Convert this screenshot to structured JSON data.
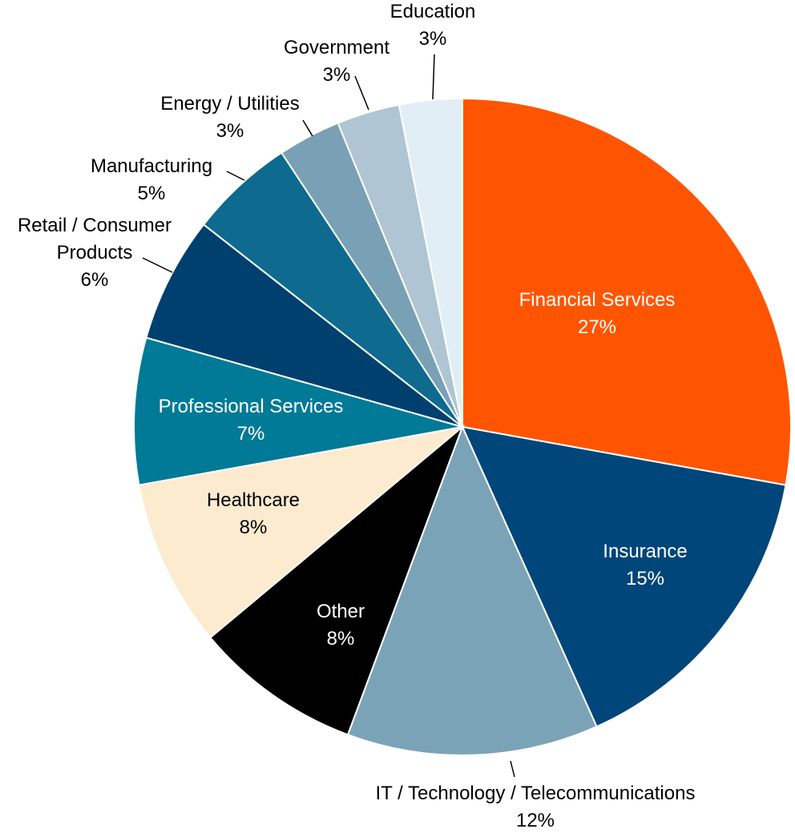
{
  "chart_data": {
    "type": "pie",
    "categories": [
      "Financial Services",
      "Insurance",
      "IT / Technology / Telecommunications",
      "Other",
      "Healthcare",
      "Professional Services",
      "Retail / Consumer Products",
      "Manufacturing",
      "Energy / Utilities",
      "Government",
      "Education"
    ],
    "values": [
      27,
      15,
      12,
      8,
      8,
      7,
      6,
      5,
      3,
      3,
      3
    ],
    "value_labels": [
      "27%",
      "15%",
      "12%",
      "8%",
      "8%",
      "7%",
      "6%",
      "5%",
      "3%",
      "3%",
      "3%"
    ],
    "colors": [
      "#ff5500",
      "#00467a",
      "#7ba3b8",
      "#000000",
      "#fdebd0",
      "#007a96",
      "#00406f",
      "#0e6a8e",
      "#7aa0b5",
      "#afc5d3",
      "#e2eef6"
    ]
  }
}
